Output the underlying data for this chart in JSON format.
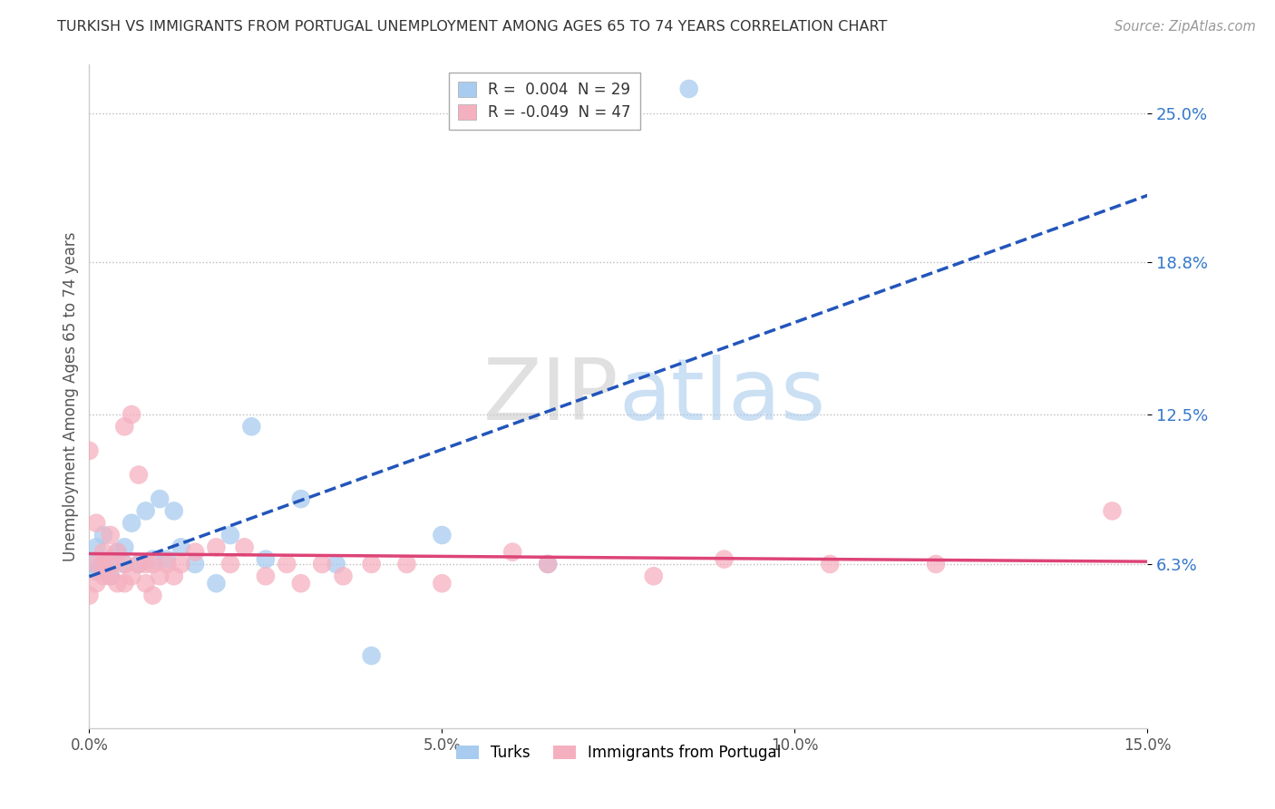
{
  "title": "TURKISH VS IMMIGRANTS FROM PORTUGAL UNEMPLOYMENT AMONG AGES 65 TO 74 YEARS CORRELATION CHART",
  "source": "Source: ZipAtlas.com",
  "ylabel": "Unemployment Among Ages 65 to 74 years",
  "xlim": [
    0.0,
    0.15
  ],
  "ylim": [
    -0.005,
    0.27
  ],
  "yticks": [
    0.063,
    0.125,
    0.188,
    0.25
  ],
  "ytick_labels": [
    "6.3%",
    "12.5%",
    "18.8%",
    "25.0%"
  ],
  "xticks": [
    0.0,
    0.05,
    0.1,
    0.15
  ],
  "xtick_labels": [
    "0.0%",
    "5.0%",
    "10.0%",
    "15.0%"
  ],
  "turks_R": 0.004,
  "turks_N": 29,
  "portugal_R": -0.049,
  "portugal_N": 47,
  "turk_color": "#A8CCF0",
  "portugal_color": "#F5B0C0",
  "turk_line_color": "#2255BB",
  "portugal_line_color": "#DD4477",
  "turks_x": [
    0.0,
    0.001,
    0.001,
    0.002,
    0.002,
    0.003,
    0.003,
    0.004,
    0.005,
    0.005,
    0.006,
    0.007,
    0.008,
    0.009,
    0.01,
    0.011,
    0.012,
    0.013,
    0.015,
    0.018,
    0.02,
    0.023,
    0.025,
    0.03,
    0.035,
    0.04,
    0.05,
    0.065,
    0.085
  ],
  "turks_y": [
    0.063,
    0.06,
    0.07,
    0.063,
    0.075,
    0.065,
    0.058,
    0.068,
    0.063,
    0.07,
    0.08,
    0.063,
    0.085,
    0.065,
    0.09,
    0.065,
    0.085,
    0.07,
    0.063,
    0.055,
    0.075,
    0.12,
    0.065,
    0.09,
    0.063,
    0.025,
    0.075,
    0.063,
    0.26
  ],
  "portugal_x": [
    0.0,
    0.0,
    0.001,
    0.001,
    0.001,
    0.002,
    0.002,
    0.002,
    0.003,
    0.003,
    0.003,
    0.004,
    0.004,
    0.005,
    0.005,
    0.005,
    0.006,
    0.006,
    0.007,
    0.007,
    0.008,
    0.008,
    0.009,
    0.009,
    0.01,
    0.011,
    0.012,
    0.013,
    0.015,
    0.018,
    0.02,
    0.022,
    0.025,
    0.028,
    0.03,
    0.033,
    0.036,
    0.04,
    0.045,
    0.05,
    0.06,
    0.065,
    0.08,
    0.09,
    0.105,
    0.12,
    0.145
  ],
  "portugal_y": [
    0.05,
    0.11,
    0.055,
    0.063,
    0.08,
    0.058,
    0.063,
    0.068,
    0.058,
    0.063,
    0.075,
    0.055,
    0.068,
    0.055,
    0.063,
    0.12,
    0.058,
    0.125,
    0.063,
    0.1,
    0.055,
    0.063,
    0.05,
    0.063,
    0.058,
    0.063,
    0.058,
    0.063,
    0.068,
    0.07,
    0.063,
    0.07,
    0.058,
    0.063,
    0.055,
    0.063,
    0.058,
    0.063,
    0.063,
    0.055,
    0.068,
    0.063,
    0.058,
    0.065,
    0.063,
    0.063,
    0.085
  ]
}
